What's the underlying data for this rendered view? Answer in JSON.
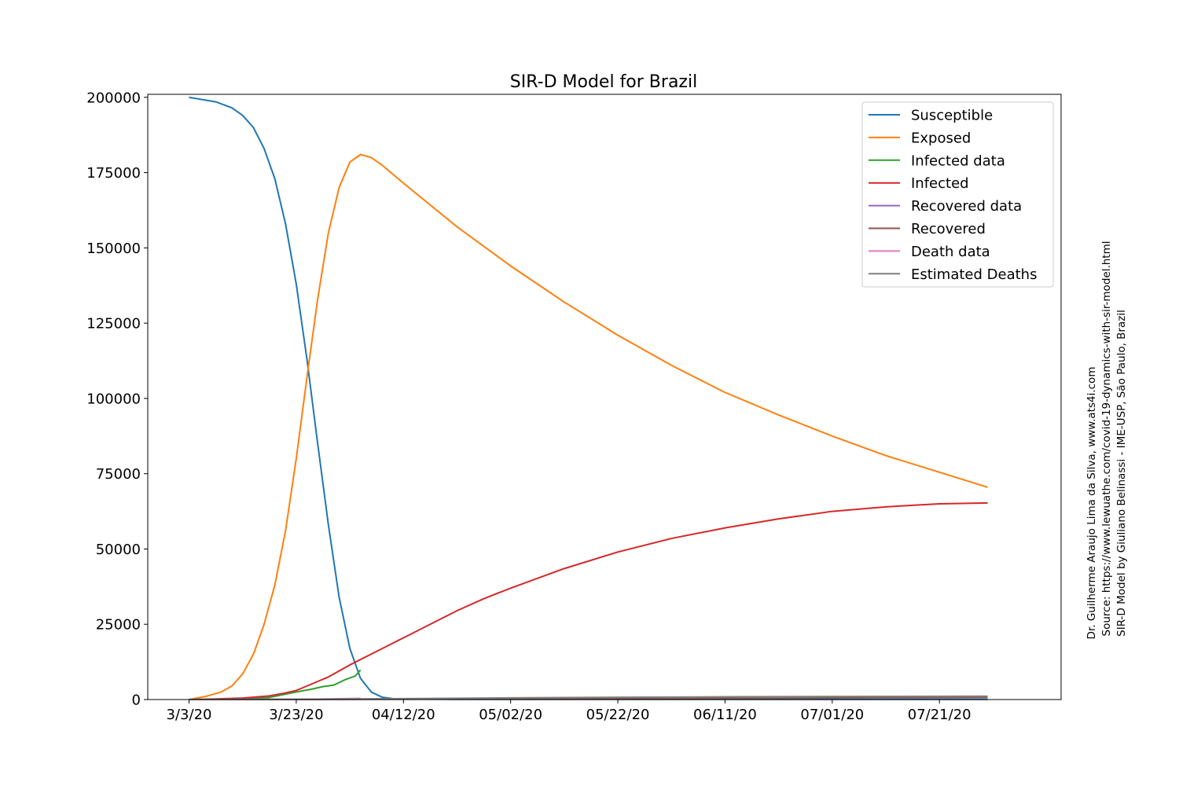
{
  "chart_data": {
    "type": "line",
    "title": "SIR-D Model for Brazil",
    "xlabel": "",
    "ylabel": "",
    "x_axis": {
      "unit": "day",
      "start_date": "2020-03-03",
      "range_days": [
        -7.7,
        162.7
      ],
      "ticks": [
        {
          "day": 0,
          "label": "3/3/20"
        },
        {
          "day": 20,
          "label": "3/23/20"
        },
        {
          "day": 40,
          "label": "04/12/20"
        },
        {
          "day": 60,
          "label": "05/02/20"
        },
        {
          "day": 80,
          "label": "05/22/20"
        },
        {
          "day": 100,
          "label": "06/11/20"
        },
        {
          "day": 120,
          "label": "07/01/20"
        },
        {
          "day": 140,
          "label": "07/21/20"
        }
      ]
    },
    "ylim": [
      0,
      201000
    ],
    "yticks": [
      {
        "value": 0,
        "label": "0"
      },
      {
        "value": 25000,
        "label": "25000"
      },
      {
        "value": 50000,
        "label": "50000"
      },
      {
        "value": 75000,
        "label": "75000"
      },
      {
        "value": 100000,
        "label": "100000"
      },
      {
        "value": 125000,
        "label": "125000"
      },
      {
        "value": 150000,
        "label": "150000"
      },
      {
        "value": 175000,
        "label": "175000"
      },
      {
        "value": 200000,
        "label": "200000"
      }
    ],
    "grid": false,
    "legend_position": "top-right",
    "series": [
      {
        "name": "Susceptible",
        "color": "#1f77b4",
        "points": [
          [
            0,
            200000
          ],
          [
            5,
            198500
          ],
          [
            8,
            196500
          ],
          [
            10,
            194000
          ],
          [
            12,
            190000
          ],
          [
            14,
            183000
          ],
          [
            16,
            173000
          ],
          [
            18,
            158000
          ],
          [
            20,
            138000
          ],
          [
            22,
            113000
          ],
          [
            24,
            85000
          ],
          [
            26,
            58000
          ],
          [
            28,
            34000
          ],
          [
            30,
            17000
          ],
          [
            32,
            7000
          ],
          [
            34,
            2500
          ],
          [
            36,
            800
          ],
          [
            38,
            300
          ],
          [
            40,
            150
          ],
          [
            50,
            80
          ],
          [
            60,
            60
          ],
          [
            100,
            50
          ],
          [
            149,
            50
          ]
        ]
      },
      {
        "name": "Exposed",
        "color": "#ff7f0e",
        "points": [
          [
            0,
            0
          ],
          [
            3,
            1000
          ],
          [
            6,
            2500
          ],
          [
            8,
            4500
          ],
          [
            10,
            8500
          ],
          [
            12,
            15000
          ],
          [
            14,
            25000
          ],
          [
            16,
            38000
          ],
          [
            18,
            56000
          ],
          [
            20,
            80000
          ],
          [
            22,
            107000
          ],
          [
            24,
            133000
          ],
          [
            26,
            155000
          ],
          [
            28,
            170000
          ],
          [
            30,
            178500
          ],
          [
            32,
            181000
          ],
          [
            34,
            180000
          ],
          [
            36,
            177500
          ],
          [
            38,
            174500
          ],
          [
            40,
            171500
          ],
          [
            50,
            157000
          ],
          [
            60,
            144000
          ],
          [
            70,
            132000
          ],
          [
            80,
            121000
          ],
          [
            90,
            111000
          ],
          [
            100,
            102000
          ],
          [
            110,
            94500
          ],
          [
            120,
            87500
          ],
          [
            130,
            81000
          ],
          [
            140,
            75500
          ],
          [
            149,
            70500
          ]
        ]
      },
      {
        "name": "Infected data",
        "color": "#2ca02c",
        "points": [
          [
            0,
            0
          ],
          [
            10,
            200
          ],
          [
            15,
            700
          ],
          [
            18,
            1800
          ],
          [
            20,
            2500
          ],
          [
            23,
            3500
          ],
          [
            25,
            4300
          ],
          [
            27,
            4800
          ],
          [
            29,
            6500
          ],
          [
            31,
            7800
          ],
          [
            32,
            9800
          ]
        ]
      },
      {
        "name": "Infected",
        "color": "#d62728",
        "points": [
          [
            0,
            0
          ],
          [
            5,
            200
          ],
          [
            10,
            500
          ],
          [
            15,
            1200
          ],
          [
            18,
            2200
          ],
          [
            20,
            3000
          ],
          [
            22,
            4500
          ],
          [
            24,
            6000
          ],
          [
            26,
            7500
          ],
          [
            28,
            9500
          ],
          [
            30,
            11500
          ],
          [
            35,
            16000
          ],
          [
            40,
            20500
          ],
          [
            45,
            25000
          ],
          [
            50,
            29500
          ],
          [
            55,
            33500
          ],
          [
            60,
            37000
          ],
          [
            70,
            43500
          ],
          [
            80,
            49000
          ],
          [
            90,
            53500
          ],
          [
            100,
            57000
          ],
          [
            110,
            60000
          ],
          [
            120,
            62500
          ],
          [
            130,
            64000
          ],
          [
            140,
            65000
          ],
          [
            149,
            65300
          ]
        ]
      },
      {
        "name": "Recovered data",
        "color": "#9467bd",
        "points": [
          [
            0,
            0
          ],
          [
            20,
            20
          ],
          [
            32,
            100
          ]
        ]
      },
      {
        "name": "Recovered",
        "color": "#8c564b",
        "points": [
          [
            0,
            0
          ],
          [
            40,
            100
          ],
          [
            80,
            300
          ],
          [
            149,
            700
          ]
        ]
      },
      {
        "name": "Death data",
        "color": "#e377c2",
        "points": [
          [
            0,
            0
          ],
          [
            20,
            30
          ],
          [
            32,
            400
          ]
        ]
      },
      {
        "name": "Estimated Deaths",
        "color": "#7f7f7f",
        "points": [
          [
            0,
            0
          ],
          [
            20,
            50
          ],
          [
            40,
            300
          ],
          [
            60,
            550
          ],
          [
            80,
            750
          ],
          [
            100,
            900
          ],
          [
            120,
            1000
          ],
          [
            149,
            1100
          ]
        ]
      }
    ]
  },
  "side_notes": [
    "Dr. Guilherme Araujo Lima da Silva, www.ats4i.com",
    "Source: https://www.lewuathe.com/covid-19-dynamics-with-sir-model.html",
    "SIR-D Model by Giuliano Belinassi - IME-USP, São Paulo, Brazil"
  ]
}
